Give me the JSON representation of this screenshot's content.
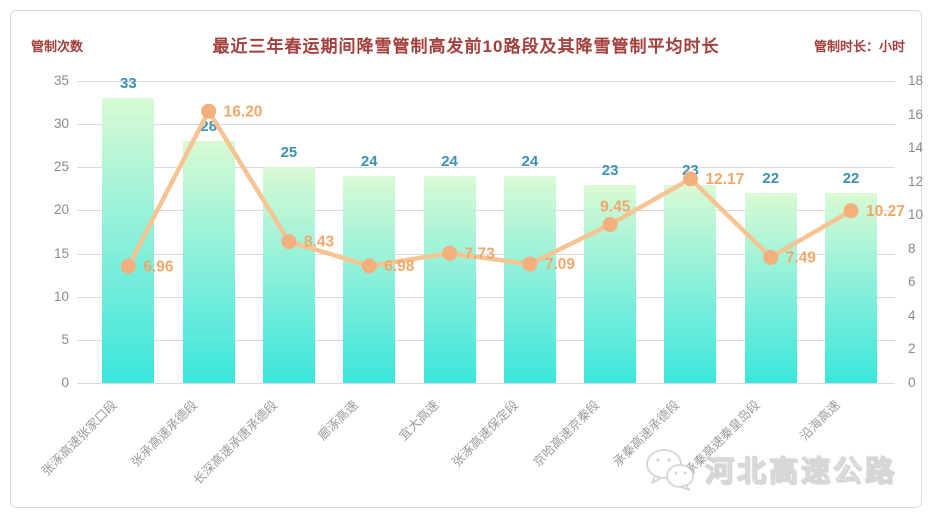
{
  "title": "最近三年春运期间降雪管制高发前10路段及其降雪管制平均时长",
  "left_axis_title": "管制次数",
  "right_axis_title": "管制时长：小时",
  "watermark": {
    "text": "河北高速公路",
    "icon": "wechat-icon"
  },
  "colors": {
    "title": "#a33f3c",
    "axis_title": "#a33f3c",
    "tick_text": "#8a8a8a",
    "category_text": "#9b9b9b",
    "grid": "#dadada",
    "bar_gradient_top": "#d9fad4",
    "bar_gradient_mid": "#86efda",
    "bar_gradient_bottom": "#3be6dc",
    "bar_label": "#3b90b8",
    "line": "#f6c392",
    "marker": "#f3b07c",
    "line_label": "#f3a869"
  },
  "chart_data": {
    "type": "bar",
    "combo": [
      "bar",
      "line"
    ],
    "title": "最近三年春运期间降雪管制高发前10路段及其降雪管制平均时长",
    "categories": [
      "张涿高速张家口段",
      "张承高速承德段",
      "长深高速承唐承德段",
      "廊涿高速",
      "宜大高速",
      "张涿高速保定段",
      "京哈高速京秦段",
      "承秦高速承德段",
      "承秦高速秦皇岛段",
      "沿海高速"
    ],
    "series": [
      {
        "type": "bar",
        "axis": "left",
        "values": [
          33,
          28,
          25,
          24,
          24,
          24,
          23,
          23,
          22,
          22
        ]
      },
      {
        "type": "line",
        "axis": "right",
        "values": [
          6.96,
          16.2,
          8.43,
          6.98,
          7.73,
          7.09,
          9.45,
          12.17,
          7.49,
          10.27
        ],
        "decimals": 2
      }
    ],
    "left_axis": {
      "label": "管制次数",
      "min": 0,
      "max": 35,
      "step": 5,
      "ticks": [
        35,
        30,
        25,
        20,
        15,
        10,
        5,
        0
      ]
    },
    "right_axis": {
      "label": "管制时长：小时",
      "min": 0,
      "max": 18,
      "step": 2,
      "ticks": [
        18,
        16,
        14,
        12,
        10,
        8,
        6,
        4,
        2,
        0
      ]
    },
    "grid": true,
    "legend": false
  }
}
